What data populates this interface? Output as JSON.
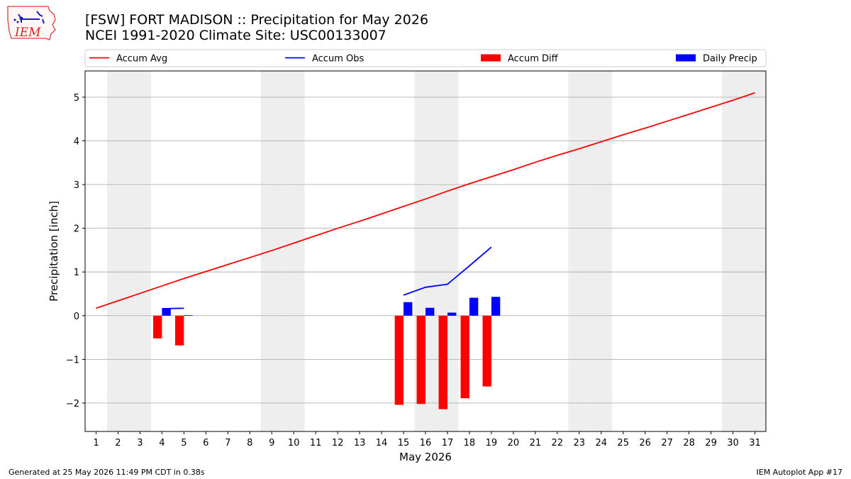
{
  "header": {
    "title_line1": "[FSW] FORT MADISON :: Precipitation for May 2026",
    "title_line2": "NCEI 1991-2020 Climate Site: USC00133007",
    "logo_text": "IEM"
  },
  "footer": {
    "left": "Generated at 25 May 2026 11:49 PM CDT in 0.38s",
    "right": "IEM Autoplot App #17"
  },
  "colors": {
    "accum_avg": "#ff0000",
    "accum_obs": "#0000ff",
    "accum_diff": "#ff0000",
    "daily_precip": "#0000ff",
    "weekend_shade": "#eeeeee",
    "grid": "#b0b0b0"
  },
  "chart_data": {
    "type": "bar",
    "xlabel": "May 2026",
    "ylabel": "Precipitation [inch]",
    "xlim": [
      0.5,
      31.5
    ],
    "ylim": [
      -2.65,
      5.6
    ],
    "yticks": [
      -2,
      -1,
      0,
      1,
      2,
      3,
      4,
      5
    ],
    "ytick_labels": [
      "−2",
      "−1",
      "0",
      "1",
      "2",
      "3",
      "4",
      "5"
    ],
    "days": [
      1,
      2,
      3,
      4,
      5,
      6,
      7,
      8,
      9,
      10,
      11,
      12,
      13,
      14,
      15,
      16,
      17,
      18,
      19,
      20,
      21,
      22,
      23,
      24,
      25,
      26,
      27,
      28,
      29,
      30,
      31
    ],
    "weekend_days": [
      2,
      3,
      9,
      10,
      16,
      17,
      23,
      24,
      30,
      31
    ],
    "grid": "horizontal",
    "legend": {
      "placement": "top",
      "entries": [
        {
          "key": "accum_avg",
          "label": "Accum Avg",
          "kind": "line"
        },
        {
          "key": "accum_obs",
          "label": "Accum Obs",
          "kind": "line"
        },
        {
          "key": "accum_diff",
          "label": "Accum Diff",
          "kind": "bar"
        },
        {
          "key": "daily_precip",
          "label": "Daily Precip",
          "kind": "bar"
        }
      ]
    },
    "series": [
      {
        "name": "Accum Avg",
        "type": "line",
        "x": [
          1,
          2,
          3,
          4,
          5,
          6,
          7,
          8,
          9,
          10,
          11,
          12,
          13,
          14,
          15,
          16,
          17,
          18,
          19,
          20,
          21,
          22,
          23,
          24,
          25,
          26,
          27,
          28,
          29,
          30,
          31
        ],
        "values": [
          0.17,
          0.34,
          0.51,
          0.68,
          0.85,
          1.01,
          1.17,
          1.33,
          1.49,
          1.66,
          1.83,
          2.0,
          2.16,
          2.33,
          2.5,
          2.67,
          2.85,
          3.02,
          3.18,
          3.34,
          3.51,
          3.67,
          3.82,
          3.98,
          4.14,
          4.29,
          4.45,
          4.61,
          4.77,
          4.93,
          5.1
        ]
      },
      {
        "name": "Accum Obs",
        "type": "line",
        "segments": [
          {
            "x": [
              4,
              5
            ],
            "values": [
              0.16,
              0.17
            ]
          },
          {
            "x": [
              15,
              16,
              17,
              18,
              19
            ],
            "values": [
              0.47,
              0.65,
              0.72,
              1.14,
              1.57
            ]
          }
        ]
      },
      {
        "name": "Accum Diff",
        "type": "bar",
        "x": [
          4,
          5,
          15,
          16,
          17,
          18,
          19
        ],
        "values": [
          -0.52,
          -0.68,
          -2.04,
          -2.02,
          -2.14,
          -1.89,
          -1.62
        ]
      },
      {
        "name": "Daily Precip",
        "type": "bar",
        "x": [
          4,
          5,
          15,
          16,
          17,
          18,
          19
        ],
        "values": [
          0.16,
          0.01,
          0.31,
          0.18,
          0.07,
          0.41,
          0.43
        ]
      }
    ]
  }
}
